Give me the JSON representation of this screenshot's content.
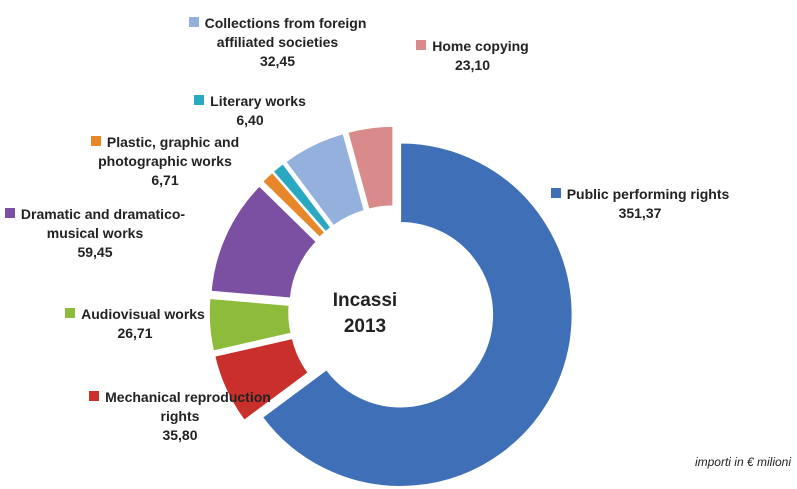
{
  "chart_data": {
    "type": "donut",
    "center_label": [
      "Incassi",
      "2013"
    ],
    "note": "importi in € milioni",
    "categories": [
      "Public performing rights",
      "Mechanical reproduction rights",
      "Audiovisual works",
      "Dramatic and dramatico-musical works",
      "Plastic, graphic and photographic works",
      "Literary works",
      "Collections from foreign affiliated societies",
      "Home copying"
    ],
    "values": [
      351.37,
      35.8,
      26.71,
      59.45,
      6.71,
      6.4,
      32.45,
      23.1
    ],
    "value_labels": [
      "351,37",
      "35,80",
      "26,71",
      "59,45",
      "6,71",
      "6,40",
      "32,45",
      "23,10"
    ],
    "colors": [
      "#3f6fb7",
      "#c9302c",
      "#8dbb3c",
      "#7b4fa1",
      "#e8862a",
      "#2aa8c2",
      "#93b1dc",
      "#d98b8b"
    ]
  }
}
